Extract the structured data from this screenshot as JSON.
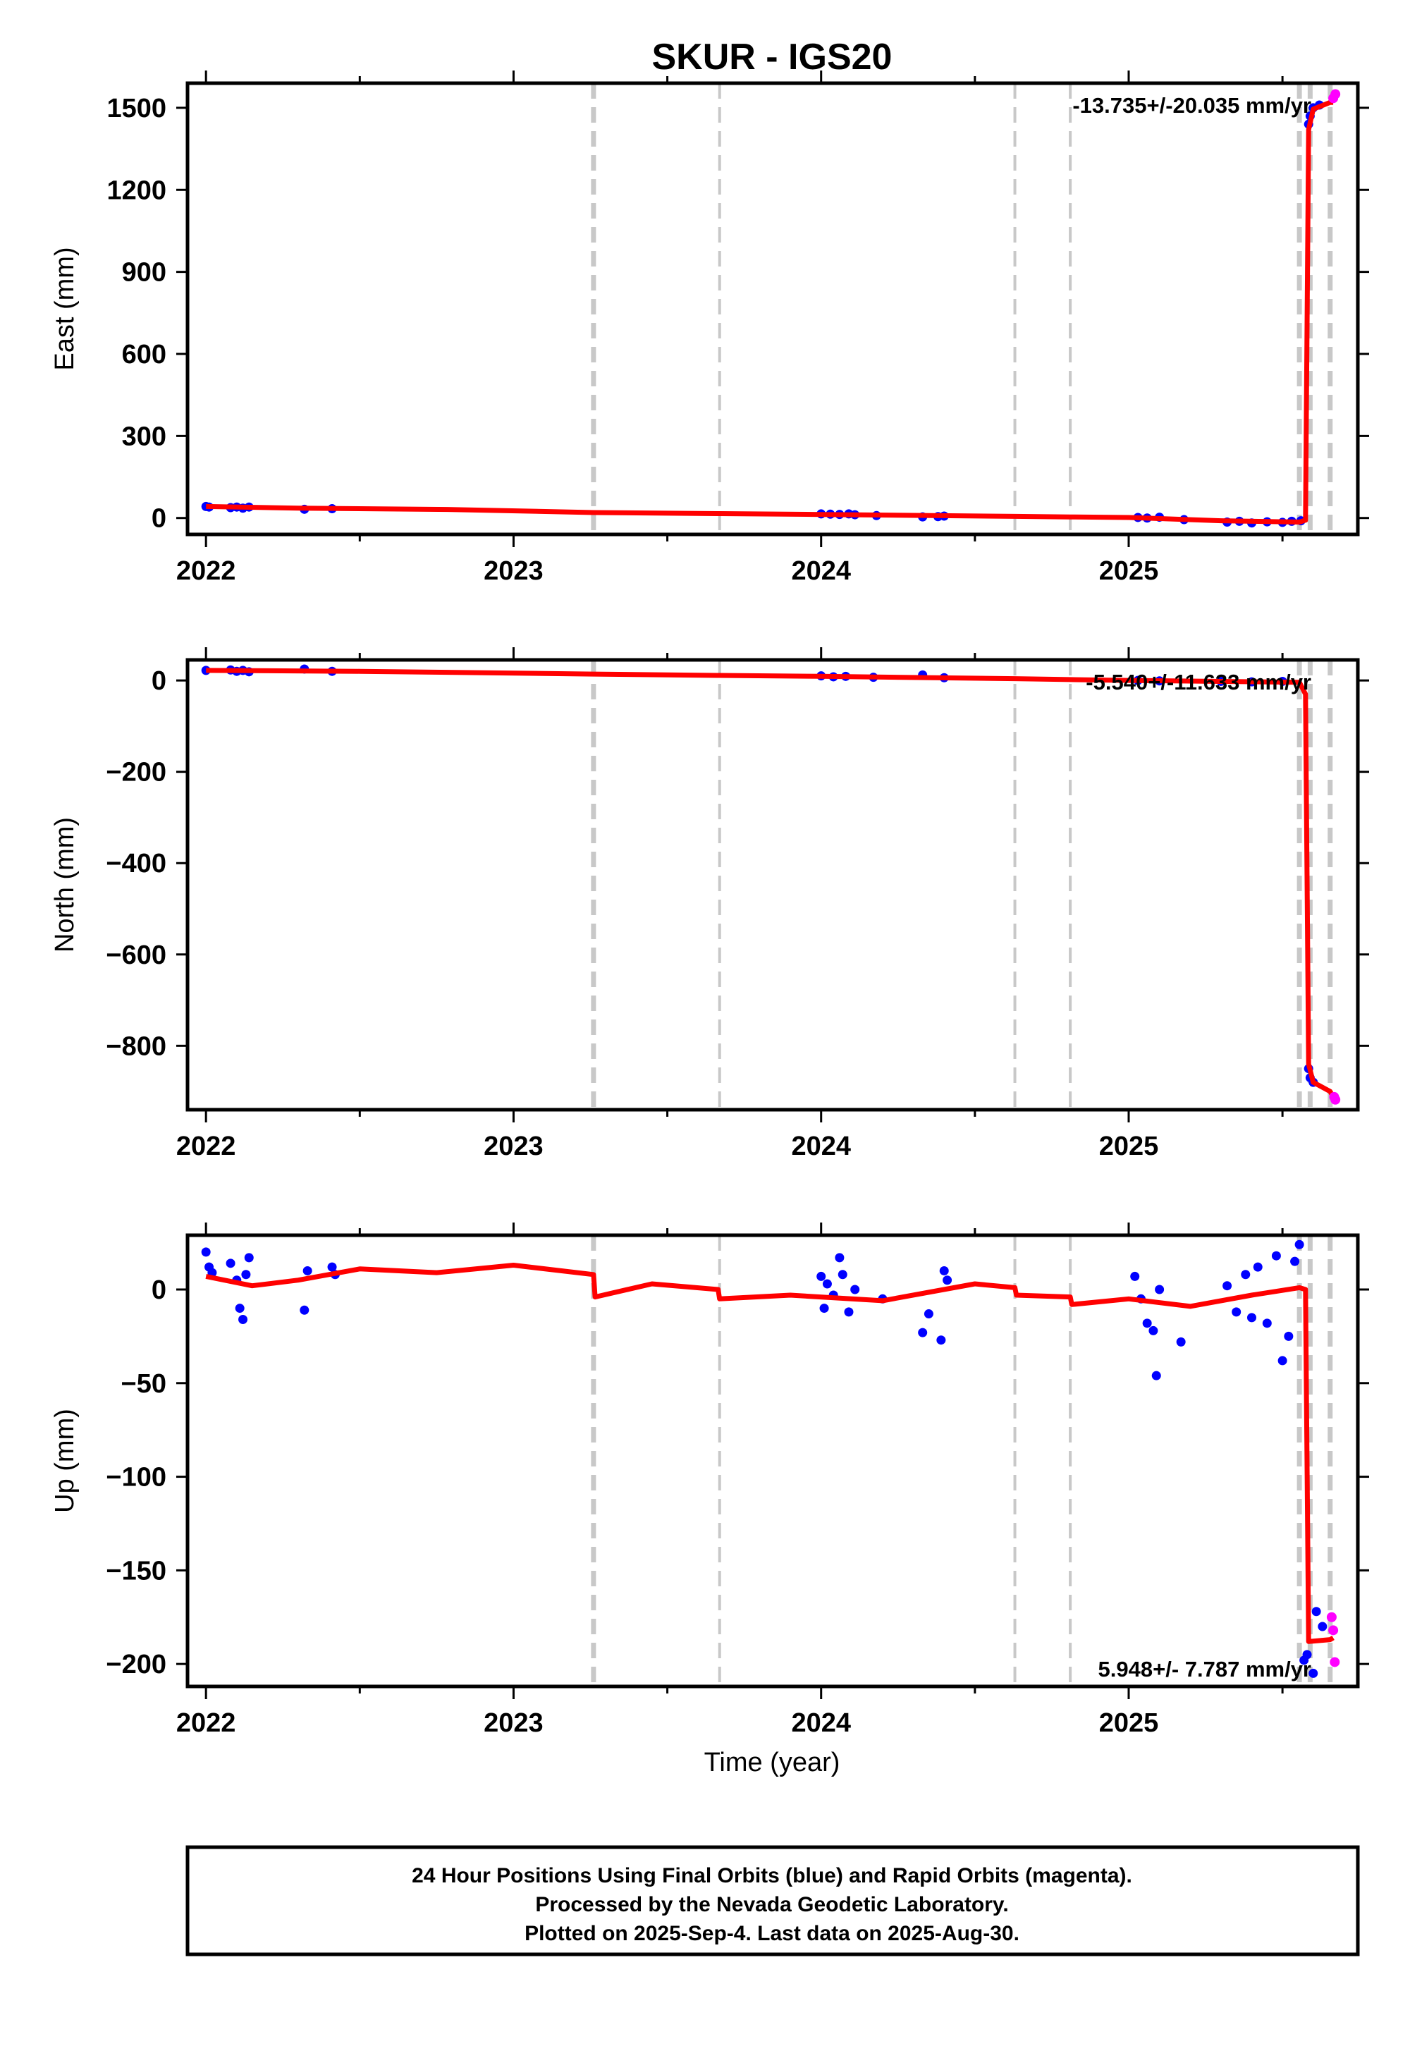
{
  "title": "SKUR - IGS20",
  "xlabel": "Time (year)",
  "footer": {
    "line1": "24 Hour Positions Using Final Orbits (blue) and Rapid Orbits (magenta).",
    "line2": "Processed by the Nevada Geodetic Laboratory.",
    "line3": "Plotted on 2025-Sep-4. Last data on 2025-Aug-30."
  },
  "colors": {
    "final": "#0000ff",
    "rapid": "#ff00ff",
    "model": "#ff0000",
    "breaks": "#c8c8c8"
  },
  "chart_data": [
    {
      "type": "scatter",
      "ylabel": "East (mm)",
      "rate_label": "-13.735+/-20.035 mm/yr",
      "xlim": [
        2021.94,
        2025.745
      ],
      "ylim": [
        -60,
        1590
      ],
      "x_ticks": [
        {
          "v": 2022,
          "label": "2022"
        },
        {
          "v": 2023,
          "label": "2023"
        },
        {
          "v": 2024,
          "label": "2024"
        },
        {
          "v": 2025,
          "label": "2025"
        }
      ],
      "y_ticks": [
        {
          "v": 0,
          "label": "0"
        },
        {
          "v": 300,
          "label": "300"
        },
        {
          "v": 600,
          "label": "600"
        },
        {
          "v": 900,
          "label": "900"
        },
        {
          "v": 1200,
          "label": "1200"
        },
        {
          "v": 1500,
          "label": "1500"
        }
      ],
      "breaks": [
        {
          "x": 2023.26,
          "w": "thick"
        },
        {
          "x": 2023.67,
          "w": "thin"
        },
        {
          "x": 2024.63,
          "w": "thin"
        },
        {
          "x": 2024.81,
          "w": "thin"
        },
        {
          "x": 2025.555,
          "w": "thick"
        },
        {
          "x": 2025.59,
          "w": "thick"
        },
        {
          "x": 2025.655,
          "w": "thick"
        }
      ],
      "model": [
        [
          2022.0,
          42
        ],
        [
          2022.3,
          36
        ],
        [
          2022.8,
          31
        ],
        [
          2023.26,
          20
        ],
        [
          2023.67,
          16
        ],
        [
          2024.0,
          13
        ],
        [
          2024.63,
          6
        ],
        [
          2024.81,
          4
        ],
        [
          2025.0,
          2
        ],
        [
          2025.3,
          -10
        ],
        [
          2025.555,
          -15
        ],
        [
          2025.575,
          -8
        ],
        [
          2025.585,
          1420
        ],
        [
          2025.6,
          1495
        ],
        [
          2025.655,
          1520
        ],
        [
          2025.665,
          1520
        ]
      ],
      "final": [
        [
          2022.0,
          42
        ],
        [
          2022.01,
          40
        ],
        [
          2022.08,
          38
        ],
        [
          2022.1,
          40
        ],
        [
          2022.12,
          36
        ],
        [
          2022.14,
          40
        ],
        [
          2022.32,
          32
        ],
        [
          2022.41,
          34
        ],
        [
          2024.0,
          15
        ],
        [
          2024.03,
          14
        ],
        [
          2024.06,
          13
        ],
        [
          2024.09,
          15
        ],
        [
          2024.11,
          12
        ],
        [
          2024.18,
          9
        ],
        [
          2024.33,
          4
        ],
        [
          2024.38,
          5
        ],
        [
          2024.4,
          7
        ],
        [
          2025.03,
          2
        ],
        [
          2025.06,
          0
        ],
        [
          2025.1,
          3
        ],
        [
          2025.18,
          -6
        ],
        [
          2025.32,
          -15
        ],
        [
          2025.36,
          -12
        ],
        [
          2025.4,
          -18
        ],
        [
          2025.45,
          -14
        ],
        [
          2025.5,
          -16
        ],
        [
          2025.53,
          -12
        ],
        [
          2025.56,
          -10
        ],
        [
          2025.585,
          1440
        ],
        [
          2025.59,
          1470
        ],
        [
          2025.6,
          1500
        ],
        [
          2025.62,
          1510
        ]
      ],
      "rapid": [
        [
          2025.665,
          1535
        ],
        [
          2025.672,
          1550
        ]
      ]
    },
    {
      "type": "scatter",
      "ylabel": "North (mm)",
      "rate_label": "-5.540+/-11.633 mm/yr",
      "xlim": [
        2021.94,
        2025.745
      ],
      "ylim": [
        -940,
        45
      ],
      "x_ticks": [
        {
          "v": 2022,
          "label": "2022"
        },
        {
          "v": 2023,
          "label": "2023"
        },
        {
          "v": 2024,
          "label": "2024"
        },
        {
          "v": 2025,
          "label": "2025"
        }
      ],
      "y_ticks": [
        {
          "v": 0,
          "label": "0"
        },
        {
          "v": -200,
          "label": "−200"
        },
        {
          "v": -400,
          "label": "−400"
        },
        {
          "v": -600,
          "label": "−600"
        },
        {
          "v": -800,
          "label": "−800"
        }
      ],
      "breaks": [
        {
          "x": 2023.26,
          "w": "thick"
        },
        {
          "x": 2023.67,
          "w": "thin"
        },
        {
          "x": 2024.63,
          "w": "thin"
        },
        {
          "x": 2024.81,
          "w": "thin"
        },
        {
          "x": 2025.555,
          "w": "thick"
        },
        {
          "x": 2025.59,
          "w": "thick"
        },
        {
          "x": 2025.655,
          "w": "thick"
        }
      ],
      "model": [
        [
          2022.0,
          22
        ],
        [
          2022.5,
          20
        ],
        [
          2023.26,
          14
        ],
        [
          2023.67,
          11
        ],
        [
          2024.0,
          9
        ],
        [
          2024.63,
          4
        ],
        [
          2024.81,
          2
        ],
        [
          2025.0,
          0
        ],
        [
          2025.555,
          -4
        ],
        [
          2025.575,
          -30
        ],
        [
          2025.585,
          -840
        ],
        [
          2025.6,
          -880
        ],
        [
          2025.655,
          -900
        ],
        [
          2025.668,
          -915
        ]
      ],
      "final": [
        [
          2022.0,
          22
        ],
        [
          2022.08,
          23
        ],
        [
          2022.1,
          20
        ],
        [
          2022.12,
          22
        ],
        [
          2022.14,
          19
        ],
        [
          2022.32,
          25
        ],
        [
          2022.41,
          20
        ],
        [
          2024.0,
          10
        ],
        [
          2024.04,
          8
        ],
        [
          2024.08,
          9
        ],
        [
          2024.17,
          7
        ],
        [
          2024.33,
          12
        ],
        [
          2024.4,
          6
        ],
        [
          2025.03,
          0
        ],
        [
          2025.1,
          -1
        ],
        [
          2025.3,
          -2
        ],
        [
          2025.4,
          -3
        ],
        [
          2025.5,
          -2
        ],
        [
          2025.585,
          -850
        ],
        [
          2025.59,
          -870
        ],
        [
          2025.6,
          -880
        ]
      ],
      "rapid": [
        [
          2025.668,
          -912
        ],
        [
          2025.672,
          -918
        ]
      ]
    },
    {
      "type": "scatter",
      "ylabel": "Up (mm)",
      "rate_label": "5.948+/- 7.787 mm/yr",
      "xlim": [
        2021.94,
        2025.745
      ],
      "ylim": [
        -212,
        29
      ],
      "x_ticks": [
        {
          "v": 2022,
          "label": "2022"
        },
        {
          "v": 2023,
          "label": "2023"
        },
        {
          "v": 2024,
          "label": "2024"
        },
        {
          "v": 2025,
          "label": "2025"
        }
      ],
      "y_ticks": [
        {
          "v": 0,
          "label": "0"
        },
        {
          "v": -50,
          "label": "−50"
        },
        {
          "v": -100,
          "label": "−100"
        },
        {
          "v": -150,
          "label": "−150"
        },
        {
          "v": -200,
          "label": "−200"
        }
      ],
      "breaks": [
        {
          "x": 2023.26,
          "w": "thick"
        },
        {
          "x": 2023.67,
          "w": "thin"
        },
        {
          "x": 2024.63,
          "w": "thin"
        },
        {
          "x": 2024.81,
          "w": "thin"
        },
        {
          "x": 2025.555,
          "w": "thick"
        },
        {
          "x": 2025.59,
          "w": "thick"
        },
        {
          "x": 2025.655,
          "w": "thick"
        }
      ],
      "model": [
        [
          2022.0,
          7
        ],
        [
          2022.15,
          2
        ],
        [
          2022.3,
          5
        ],
        [
          2022.5,
          11
        ],
        [
          2022.75,
          9
        ],
        [
          2023.0,
          13
        ],
        [
          2023.26,
          8
        ],
        [
          2023.265,
          -4
        ],
        [
          2023.45,
          3
        ],
        [
          2023.665,
          0
        ],
        [
          2023.67,
          -5
        ],
        [
          2023.9,
          -3
        ],
        [
          2024.2,
          -6
        ],
        [
          2024.5,
          3
        ],
        [
          2024.63,
          1
        ],
        [
          2024.635,
          -3
        ],
        [
          2024.81,
          -4
        ],
        [
          2024.815,
          -8
        ],
        [
          2025.0,
          -5
        ],
        [
          2025.2,
          -9
        ],
        [
          2025.4,
          -3
        ],
        [
          2025.555,
          1
        ],
        [
          2025.575,
          0
        ],
        [
          2025.585,
          -188
        ],
        [
          2025.655,
          -187
        ],
        [
          2025.665,
          -186
        ]
      ],
      "final": [
        [
          2022.0,
          20
        ],
        [
          2022.01,
          12
        ],
        [
          2022.02,
          9
        ],
        [
          2022.08,
          14
        ],
        [
          2022.1,
          5
        ],
        [
          2022.11,
          -10
        ],
        [
          2022.12,
          -16
        ],
        [
          2022.14,
          17
        ],
        [
          2022.13,
          8
        ],
        [
          2022.32,
          -11
        ],
        [
          2022.33,
          10
        ],
        [
          2022.41,
          12
        ],
        [
          2022.42,
          8
        ],
        [
          2024.0,
          7
        ],
        [
          2024.01,
          -10
        ],
        [
          2024.02,
          3
        ],
        [
          2024.04,
          -3
        ],
        [
          2024.06,
          17
        ],
        [
          2024.07,
          8
        ],
        [
          2024.09,
          -12
        ],
        [
          2024.11,
          0
        ],
        [
          2024.2,
          -5
        ],
        [
          2024.33,
          -23
        ],
        [
          2024.35,
          -13
        ],
        [
          2024.39,
          -27
        ],
        [
          2024.4,
          10
        ],
        [
          2024.41,
          5
        ],
        [
          2025.02,
          7
        ],
        [
          2025.04,
          -5
        ],
        [
          2025.06,
          -18
        ],
        [
          2025.08,
          -22
        ],
        [
          2025.09,
          -46
        ],
        [
          2025.1,
          0
        ],
        [
          2025.17,
          -28
        ],
        [
          2025.32,
          2
        ],
        [
          2025.35,
          -12
        ],
        [
          2025.38,
          8
        ],
        [
          2025.4,
          -15
        ],
        [
          2025.42,
          12
        ],
        [
          2025.45,
          -18
        ],
        [
          2025.48,
          18
        ],
        [
          2025.5,
          -38
        ],
        [
          2025.52,
          -25
        ],
        [
          2025.54,
          15
        ],
        [
          2025.555,
          24
        ],
        [
          2025.57,
          -198
        ],
        [
          2025.58,
          -195
        ],
        [
          2025.6,
          -205
        ],
        [
          2025.61,
          -172
        ],
        [
          2025.63,
          -180
        ]
      ],
      "rapid": [
        [
          2025.66,
          -175
        ],
        [
          2025.665,
          -182
        ],
        [
          2025.67,
          -199
        ]
      ]
    }
  ]
}
